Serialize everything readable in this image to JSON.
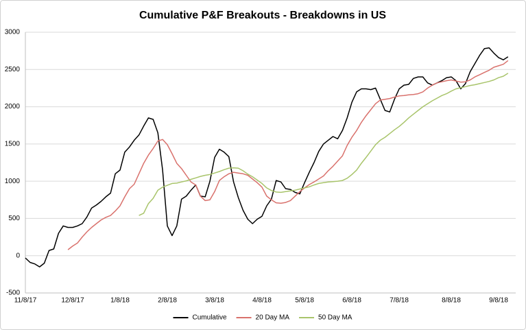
{
  "chart_data": {
    "type": "line",
    "title": "Cumulative P&F Breakouts - Breakdowns in US",
    "categories": [
      "11/8/17",
      null,
      null,
      null,
      null,
      null,
      null,
      null,
      null,
      null,
      "12/8/17",
      null,
      null,
      null,
      null,
      null,
      null,
      null,
      null,
      null,
      "1/8/18",
      null,
      null,
      null,
      null,
      null,
      null,
      null,
      null,
      null,
      "2/8/18",
      null,
      null,
      null,
      null,
      null,
      null,
      null,
      null,
      null,
      "3/8/18",
      null,
      null,
      null,
      null,
      null,
      null,
      null,
      null,
      null,
      "4/8/18",
      null,
      null,
      null,
      null,
      null,
      null,
      null,
      null,
      "5/8/18",
      null,
      null,
      null,
      null,
      null,
      null,
      null,
      null,
      null,
      "6/8/18",
      null,
      null,
      null,
      null,
      null,
      null,
      null,
      null,
      null,
      "7/8/18",
      null,
      null,
      null,
      null,
      null,
      null,
      null,
      null,
      null,
      null,
      "8/8/18",
      null,
      null,
      null,
      null,
      null,
      null,
      null,
      null,
      null,
      "9/8/18",
      null,
      null
    ],
    "series": [
      {
        "name": "Cumulative",
        "color": "#000000",
        "values": [
          -30,
          -90,
          -110,
          -150,
          -100,
          70,
          90,
          300,
          400,
          380,
          380,
          400,
          430,
          520,
          640,
          680,
          730,
          790,
          840,
          1100,
          1150,
          1390,
          1460,
          1550,
          1620,
          1740,
          1850,
          1830,
          1650,
          1150,
          400,
          270,
          400,
          760,
          800,
          880,
          950,
          800,
          790,
          1000,
          1320,
          1430,
          1390,
          1330,
          990,
          780,
          610,
          490,
          430,
          490,
          530,
          670,
          760,
          1010,
          990,
          900,
          890,
          850,
          830,
          980,
          1120,
          1250,
          1400,
          1500,
          1550,
          1600,
          1570,
          1680,
          1850,
          2060,
          2200,
          2240,
          2240,
          2230,
          2250,
          2100,
          1950,
          1930,
          2100,
          2240,
          2290,
          2300,
          2380,
          2400,
          2400,
          2320,
          2290,
          2320,
          2350,
          2390,
          2400,
          2350,
          2240,
          2310,
          2470,
          2580,
          2690,
          2780,
          2790,
          2720,
          2660,
          2630,
          2670
        ]
      },
      {
        "name": "20 Day MA",
        "color": "#d9716c",
        "values": [
          null,
          null,
          null,
          null,
          null,
          null,
          null,
          null,
          null,
          80,
          130,
          170,
          250,
          320,
          380,
          430,
          480,
          515,
          540,
          600,
          670,
          790,
          900,
          960,
          1100,
          1240,
          1350,
          1440,
          1540,
          1560,
          1490,
          1370,
          1240,
          1170,
          1080,
          990,
          950,
          800,
          740,
          750,
          860,
          1010,
          1060,
          1100,
          1120,
          1110,
          1100,
          1080,
          1030,
          980,
          920,
          800,
          750,
          710,
          705,
          715,
          740,
          800,
          860,
          910,
          955,
          990,
          1030,
          1070,
          1140,
          1200,
          1270,
          1340,
          1480,
          1590,
          1680,
          1790,
          1880,
          1960,
          2040,
          2090,
          2100,
          2110,
          2130,
          2145,
          2150,
          2160,
          2165,
          2175,
          2200,
          2250,
          2290,
          2320,
          2335,
          2350,
          2360,
          2345,
          2330,
          2335,
          2360,
          2400,
          2430,
          2460,
          2490,
          2530,
          2550,
          2570,
          2620
        ]
      },
      {
        "name": "50 Day MA",
        "color": "#a8c46a",
        "values": [
          null,
          null,
          null,
          null,
          null,
          null,
          null,
          null,
          null,
          null,
          null,
          null,
          null,
          null,
          null,
          null,
          null,
          null,
          null,
          null,
          null,
          null,
          null,
          null,
          540,
          570,
          700,
          770,
          880,
          920,
          945,
          970,
          975,
          990,
          1005,
          1025,
          1045,
          1065,
          1080,
          1090,
          1110,
          1130,
          1155,
          1175,
          1180,
          1175,
          1140,
          1095,
          1060,
          1015,
          970,
          910,
          875,
          855,
          850,
          860,
          870,
          880,
          895,
          910,
          925,
          950,
          970,
          980,
          990,
          995,
          1000,
          1010,
          1040,
          1090,
          1150,
          1240,
          1320,
          1405,
          1490,
          1550,
          1590,
          1640,
          1690,
          1735,
          1790,
          1850,
          1900,
          1950,
          2000,
          2040,
          2080,
          2115,
          2150,
          2175,
          2210,
          2240,
          2255,
          2270,
          2285,
          2295,
          2310,
          2325,
          2340,
          2360,
          2390,
          2410,
          2450
        ]
      }
    ],
    "ylim": [
      -500,
      3000
    ],
    "yticks": [
      -500,
      0,
      500,
      1000,
      1500,
      2000,
      2500,
      3000
    ],
    "grid": true,
    "legend": "bottom"
  }
}
